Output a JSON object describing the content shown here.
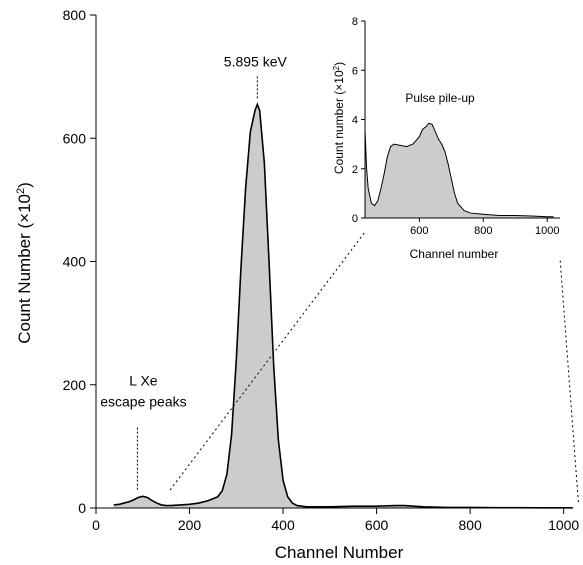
{
  "chart_data": [
    {
      "type": "area",
      "xlabel": "Channel Number",
      "ylabel": "Count Number (×10",
      "ylabel_exponent": "2",
      "ylabel_close": ")",
      "xlim": [
        0,
        1020
      ],
      "ylim": [
        0,
        800
      ],
      "x_ticks": [
        0,
        200,
        400,
        600,
        800,
        1000
      ],
      "y_ticks": [
        0,
        200,
        400,
        600,
        800
      ],
      "fill_color": "#cccccc",
      "line_color": "#000000",
      "annotations": [
        {
          "label": "5.895 keV",
          "x": 345,
          "y": 655
        },
        {
          "label": "L Xe",
          "x": 110,
          "y": 20
        },
        {
          "label": "escape peaks",
          "x": 110,
          "y": 20
        }
      ],
      "series": [
        {
          "x": [
            38,
            50,
            60,
            70,
            80,
            90,
            100,
            110,
            120,
            130,
            140,
            150,
            160,
            180,
            200,
            220,
            240,
            260,
            270,
            280,
            290,
            300,
            310,
            320,
            330,
            340,
            345,
            350,
            360,
            370,
            380,
            390,
            400,
            410,
            420,
            430,
            450,
            500,
            550,
            600,
            640,
            660,
            680,
            700,
            750,
            800,
            850,
            900,
            950,
            1000,
            1020
          ],
          "y": [
            5,
            6,
            8,
            10,
            13,
            17,
            19,
            17,
            12,
            8,
            5,
            4,
            4,
            5,
            6,
            8,
            12,
            18,
            28,
            55,
            120,
            240,
            390,
            520,
            610,
            645,
            655,
            645,
            560,
            400,
            230,
            110,
            45,
            18,
            8,
            4,
            2,
            2,
            3,
            3,
            4,
            4,
            3,
            2,
            1,
            1,
            0.5,
            0.5,
            0.3,
            0.3,
            0.2
          ]
        }
      ]
    },
    {
      "type": "area",
      "title": "Pulse pile-up",
      "xlabel": "Channel number",
      "ylabel": "Count number (×10",
      "ylabel_exponent": "2",
      "ylabel_close": ")",
      "xlim": [
        430,
        1040
      ],
      "ylim": [
        0,
        8
      ],
      "x_ticks": [
        600,
        800,
        1000
      ],
      "y_ticks": [
        0,
        2,
        4,
        6,
        8
      ],
      "fill_color": "#cccccc",
      "line_color": "#000000",
      "series": [
        {
          "x": [
            430,
            435,
            440,
            450,
            460,
            470,
            480,
            490,
            500,
            510,
            520,
            540,
            560,
            580,
            600,
            610,
            620,
            630,
            640,
            650,
            660,
            670,
            680,
            690,
            700,
            710,
            720,
            740,
            760,
            800,
            850,
            900,
            950,
            1000,
            1020
          ],
          "y": [
            3.6,
            2.0,
            1.2,
            0.6,
            0.5,
            0.7,
            1.2,
            1.8,
            2.5,
            2.9,
            3.0,
            2.95,
            2.9,
            3.0,
            3.3,
            3.6,
            3.7,
            3.85,
            3.8,
            3.5,
            3.2,
            3.0,
            2.7,
            2.2,
            1.6,
            1.0,
            0.6,
            0.3,
            0.2,
            0.15,
            0.1,
            0.1,
            0.08,
            0.05,
            0.05
          ]
        }
      ]
    }
  ]
}
